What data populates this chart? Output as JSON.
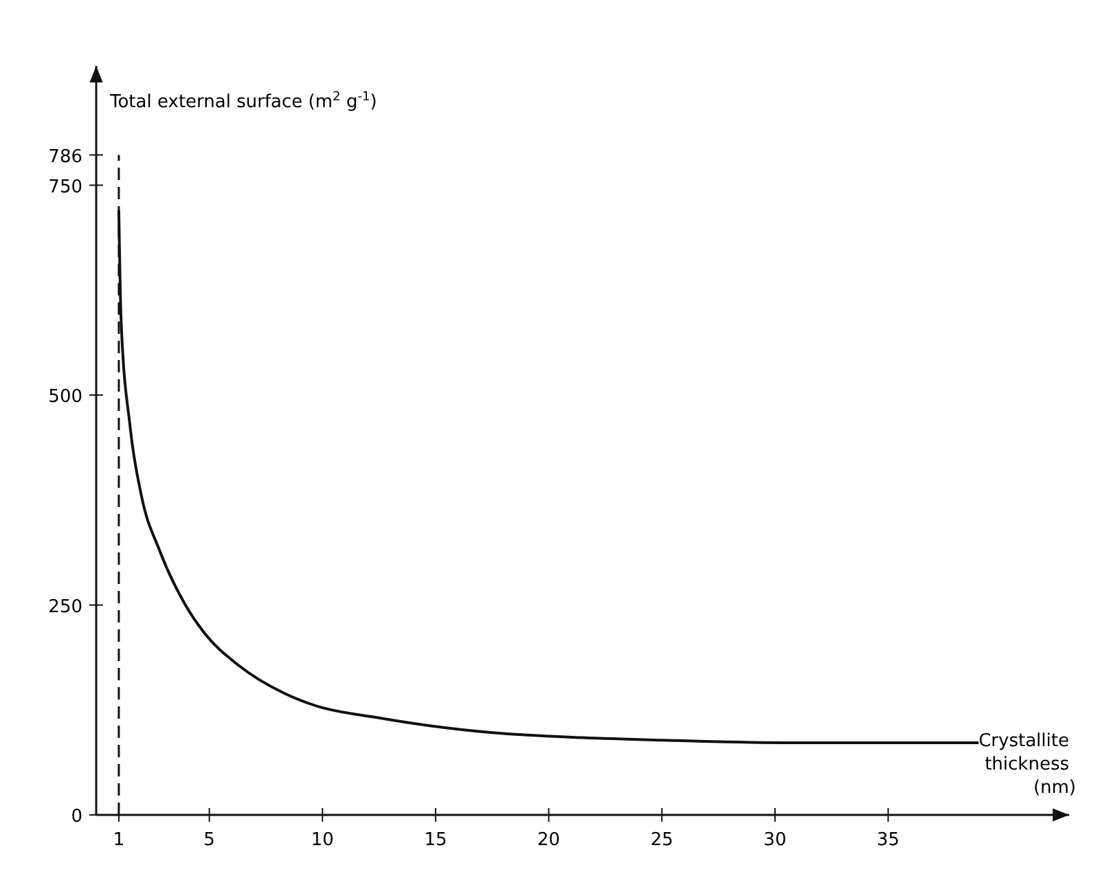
{
  "chart_data": {
    "type": "line",
    "ylabel": "Total external surface (m$^{2}$ g$^{-1}$)",
    "xlabel": "Crystallite thickness (nm)",
    "xlim": [
      0,
      43
    ],
    "ylim": [
      0,
      892
    ],
    "xticks": [
      1,
      5,
      10,
      15,
      20,
      25,
      30,
      35
    ],
    "yticks": [
      0,
      250,
      500,
      750,
      786
    ],
    "series": [
      {
        "color": "#111111",
        "x": [
          1,
          1.1,
          1.5,
          2,
          2.8,
          3.9,
          4.8,
          6.3,
          8.3,
          9.7,
          12.4,
          14.8,
          17.5,
          21.5,
          25,
          30.7,
          35,
          39
        ],
        "values": [
          720,
          590,
          462,
          380,
          315,
          252,
          216,
          178,
          145,
          130,
          116,
          106,
          98,
          92,
          89,
          86,
          86,
          86
        ]
      }
    ],
    "ref_lines": [
      {
        "axis": "x",
        "value": 1,
        "line_style": "dashed",
        "color": "#111111"
      }
    ],
    "grid": false,
    "marker": "none",
    "line_style": "solid"
  }
}
